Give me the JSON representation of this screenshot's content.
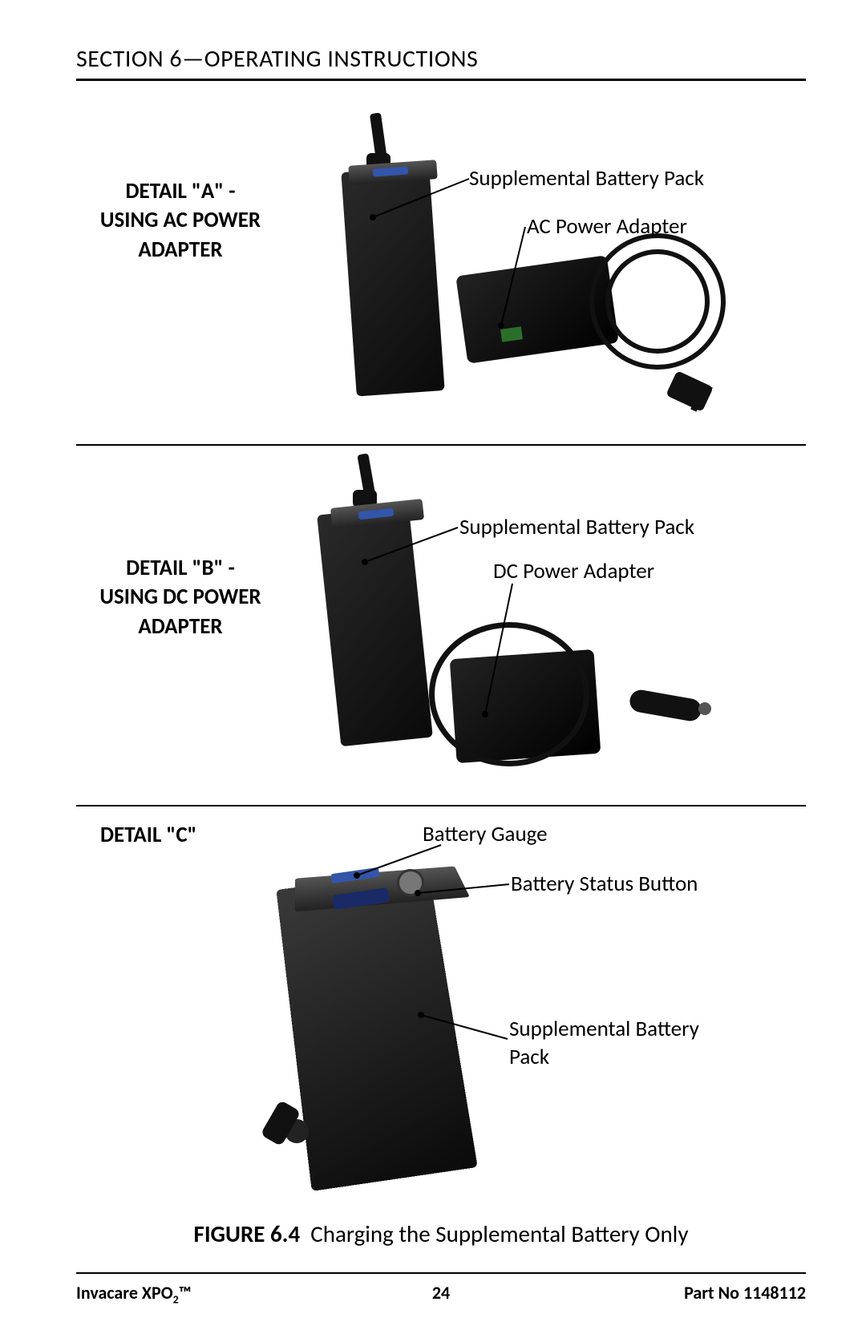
{
  "header": {
    "title": "SECTION 6—OPERATING INSTRUCTIONS"
  },
  "panels": {
    "a": {
      "detail_label": "DETAIL \"A\" -\nUSING AC POWER\nADAPTER",
      "callout_battery": "Supplemental Battery Pack",
      "callout_adapter": "AC Power Adapter"
    },
    "b": {
      "detail_label": "DETAIL \"B\" -\nUSING DC POWER\nADAPTER",
      "callout_battery": "Supplemental Battery Pack",
      "callout_adapter": "DC Power Adapter"
    },
    "c": {
      "detail_label": "DETAIL \"C\"",
      "callout_gauge": "Battery Gauge",
      "callout_button": "Battery Status Button",
      "callout_pack": "Supplemental Battery\nPack"
    }
  },
  "figure": {
    "number": "FIGURE 6.4",
    "title": "Charging the Supplemental Battery Only"
  },
  "footer": {
    "product": "Invacare XPO",
    "product_sub": "2",
    "product_tm": "™",
    "page": "24",
    "partno": "Part No 1148112"
  },
  "style": {
    "page_bg": "#ffffff",
    "text_color": "#000000",
    "rule_color": "#000000",
    "header_fontsize": 30,
    "detail_fontsize": 27,
    "callout_fontsize": 27,
    "caption_fontsize": 29,
    "footer_fontsize": 22,
    "leader_stroke": "#000000",
    "leader_width": 2
  }
}
